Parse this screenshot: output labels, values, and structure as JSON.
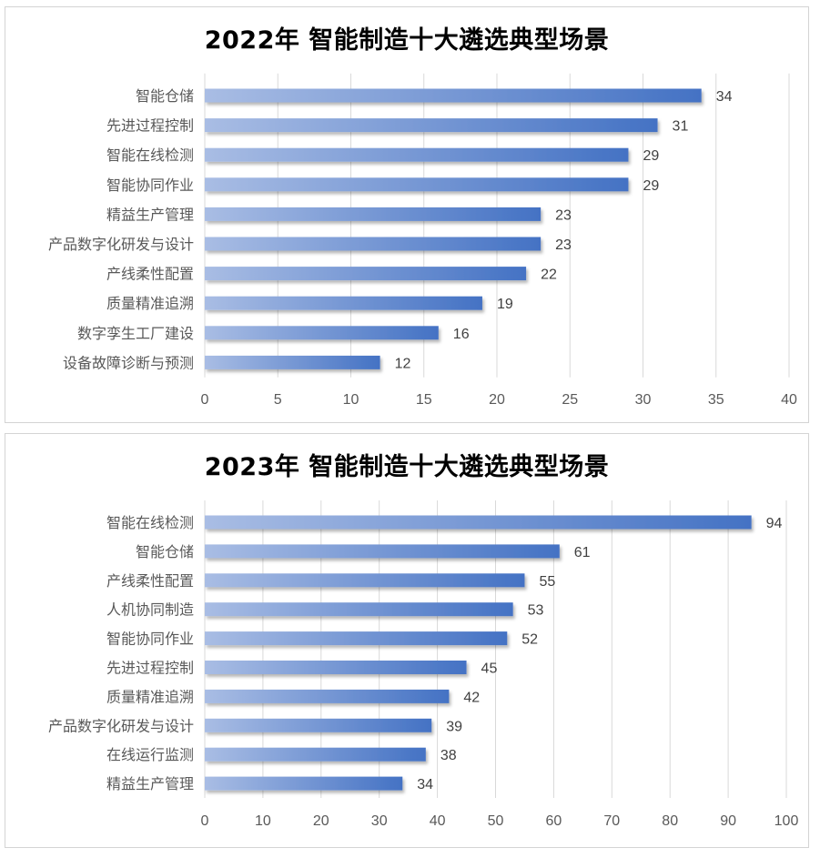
{
  "chart_data": [
    {
      "type": "bar",
      "orientation": "horizontal",
      "title": "2022年 智能制造十大遴选典型场景",
      "categories": [
        "智能仓储",
        "先进过程控制",
        "智能在线检测",
        "智能协同作业",
        "精益生产管理",
        "产品数字化研发与设计",
        "产线柔性配置",
        "质量精准追溯",
        "数字孪生工厂建设",
        "设备故障诊断与预测"
      ],
      "values": [
        34,
        31,
        29,
        29,
        23,
        23,
        22,
        19,
        16,
        12
      ],
      "xlim": [
        0,
        40
      ],
      "xticks": [
        0,
        5,
        10,
        15,
        20,
        25,
        30,
        35,
        40
      ],
      "grid": true,
      "data_labels": true,
      "bar_color_start": "#a9bde4",
      "bar_color_end": "#4472c4"
    },
    {
      "type": "bar",
      "orientation": "horizontal",
      "title": "2023年 智能制造十大遴选典型场景",
      "categories": [
        "智能在线检测",
        "智能仓储",
        "产线柔性配置",
        "人机协同制造",
        "智能协同作业",
        "先进过程控制",
        "质量精准追溯",
        "产品数字化研发与设计",
        "在线运行监测",
        "精益生产管理"
      ],
      "values": [
        94,
        61,
        55,
        53,
        52,
        45,
        42,
        39,
        38,
        34
      ],
      "xlim": [
        0,
        100
      ],
      "xticks": [
        0,
        10,
        20,
        30,
        40,
        50,
        60,
        70,
        80,
        90,
        100
      ],
      "grid": true,
      "data_labels": true,
      "bar_color_start": "#a9bde4",
      "bar_color_end": "#4472c4"
    }
  ]
}
